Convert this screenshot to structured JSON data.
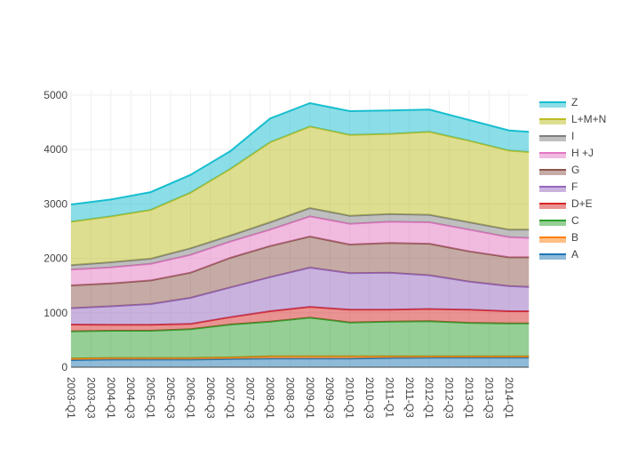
{
  "chart_data": {
    "type": "area",
    "stacked": true,
    "title": "",
    "xlabel": "",
    "ylabel": "",
    "ylim": [
      0,
      5100
    ],
    "yticks": [
      0,
      1000,
      2000,
      3000,
      4000,
      5000
    ],
    "grid": true,
    "legend_position": "right",
    "quarters_all_count": 47,
    "x_ticks": [
      "2003-Q1",
      "2003-Q3",
      "2004-Q1",
      "2004-Q3",
      "2005-Q1",
      "2005-Q3",
      "2006-Q1",
      "2006-Q3",
      "2007-Q1",
      "2007-Q3",
      "2008-Q1",
      "2008-Q3",
      "2009-Q1",
      "2009-Q3",
      "2010-Q1",
      "2010-Q3",
      "2011-Q1",
      "2011-Q3",
      "2012-Q1",
      "2012-Q3",
      "2013-Q1",
      "2013-Q3",
      "2014-Q1"
    ],
    "x": [
      "2003-Q1",
      "2004-Q1",
      "2005-Q1",
      "2006-Q1",
      "2007-Q1",
      "2008-Q1",
      "2009-Q1",
      "2010-Q1",
      "2011-Q1",
      "2012-Q1",
      "2013-Q1",
      "2014-Q1",
      "2014-Q3"
    ],
    "series": [
      {
        "name": "A",
        "color": "#1f77b4",
        "values": [
          130,
          140,
          140,
          140,
          150,
          160,
          160,
          160,
          170,
          175,
          175,
          175,
          175
        ]
      },
      {
        "name": "B",
        "color": "#ff7f0e",
        "values": [
          30,
          30,
          30,
          30,
          30,
          40,
          40,
          40,
          30,
          25,
          25,
          25,
          25
        ]
      },
      {
        "name": "C",
        "color": "#2ca02c",
        "values": [
          500,
          500,
          500,
          530,
          605,
          638,
          710,
          622,
          638,
          645,
          616,
          605,
          605
        ]
      },
      {
        "name": "D+E",
        "color": "#d62728",
        "values": [
          125,
          110,
          110,
          95,
          135,
          192,
          200,
          235,
          219,
          225,
          241,
          225,
          225
        ]
      },
      {
        "name": "F",
        "color": "#9467bd",
        "values": [
          300,
          340,
          380,
          480,
          545,
          625,
          720,
          670,
          680,
          620,
          517,
          462,
          446
        ]
      },
      {
        "name": "G",
        "color": "#8c564b",
        "values": [
          418,
          420,
          435,
          462,
          545,
          572,
          572,
          528,
          545,
          580,
          555,
          528,
          544
        ]
      },
      {
        "name": "H +J",
        "color": "#e377c2",
        "values": [
          289,
          295,
          305,
          327,
          299,
          300,
          370,
          381,
          392,
          393,
          398,
          371,
          355
        ]
      },
      {
        "name": "I",
        "color": "#7f7f7f",
        "values": [
          82,
          93,
          93,
          120,
          109,
          136,
          153,
          147,
          142,
          137,
          136,
          136,
          152
        ]
      },
      {
        "name": "L+M+N",
        "color": "#bcbd22",
        "values": [
          800,
          843,
          898,
          1024,
          1226,
          1471,
          1498,
          1487,
          1471,
          1525,
          1498,
          1454,
          1427
        ]
      },
      {
        "name": "Z",
        "color": "#17becf",
        "values": [
          316,
          311,
          327,
          327,
          327,
          436,
          430,
          436,
          430,
          408,
          382,
          371,
          371
        ]
      }
    ]
  }
}
